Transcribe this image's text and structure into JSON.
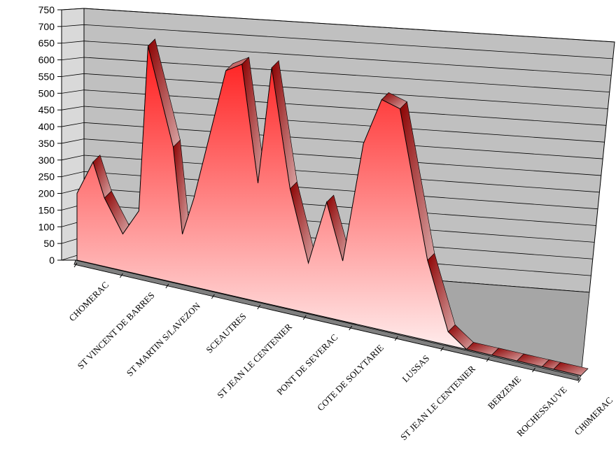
{
  "chart_data": {
    "type": "area",
    "title": "",
    "xlabel": "",
    "ylabel": "",
    "ylim": [
      0,
      750
    ],
    "ytick_step": 50,
    "grid": true,
    "categories": [
      "CHOMERAC",
      "ST VINCENT DE BARRES",
      "ST MARTIN S/LAVEZON",
      "SCEAUTRES",
      "ST JEAN LE CENTENIER",
      "PONT DE SEVERAC",
      "COTE DE SOLYTARIE",
      "LUSSAS",
      "ST JEAN LE CENTENIER",
      "BERZEME",
      "ROCHESSAUVE",
      "CH0MERAC"
    ],
    "profile": {
      "x": [
        0,
        0.35,
        0.6,
        1.0,
        1.35,
        1.55,
        2.1,
        2.3,
        2.55,
        3.25,
        3.6,
        3.95,
        4.25,
        4.65,
        5.05,
        5.45,
        5.8,
        6.25,
        6.65,
        7.05,
        7.65,
        8.1,
        8.5,
        9.05,
        9.6,
        10.15,
        10.4,
        11.0
      ],
      "y": [
        200,
        305,
        205,
        110,
        190,
        690,
        405,
        150,
        265,
        670,
        700,
        355,
        710,
        360,
        150,
        345,
        180,
        545,
        690,
        675,
        240,
        40,
        0,
        0,
        0,
        0,
        0,
        0
      ],
      "x_note": ""
    },
    "colors": {
      "fill_top": "#ff1a1a",
      "fill_bottom": "#ffffff",
      "wall": "#c0c0c0",
      "floor": "#808080"
    }
  }
}
